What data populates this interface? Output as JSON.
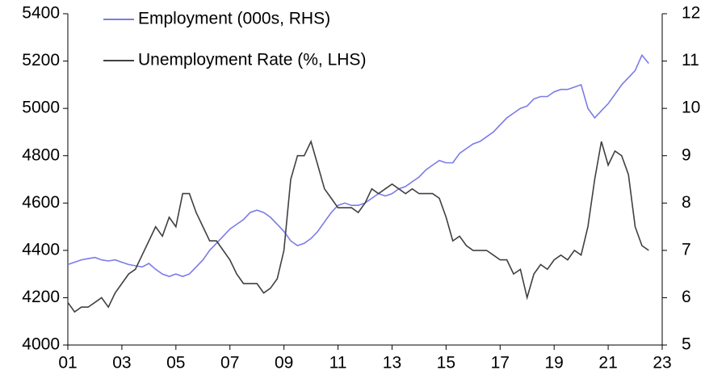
{
  "chart_data": {
    "type": "line",
    "x": [
      2001,
      2001.25,
      2001.5,
      2001.75,
      2002,
      2002.25,
      2002.5,
      2002.75,
      2003,
      2003.25,
      2003.5,
      2003.75,
      2004,
      2004.25,
      2004.5,
      2004.75,
      2005,
      2005.25,
      2005.5,
      2005.75,
      2006,
      2006.25,
      2006.5,
      2006.75,
      2007,
      2007.25,
      2007.5,
      2007.75,
      2008,
      2008.25,
      2008.5,
      2008.75,
      2009,
      2009.25,
      2009.5,
      2009.75,
      2010,
      2010.25,
      2010.5,
      2010.75,
      2011,
      2011.25,
      2011.5,
      2011.75,
      2012,
      2012.25,
      2012.5,
      2012.75,
      2013,
      2013.25,
      2013.5,
      2013.75,
      2014,
      2014.25,
      2014.5,
      2014.75,
      2015,
      2015.25,
      2015.5,
      2015.75,
      2016,
      2016.25,
      2016.5,
      2016.75,
      2017,
      2017.25,
      2017.5,
      2017.75,
      2018,
      2018.25,
      2018.5,
      2018.75,
      2019,
      2019.25,
      2019.5,
      2019.75,
      2020,
      2020.25,
      2020.5,
      2020.75,
      2021,
      2021.25,
      2021.5,
      2021.75,
      2022,
      2022.25,
      2022.5
    ],
    "series": [
      {
        "name": "Employment (000s, RHS)",
        "color": "#7b7be8",
        "axis": "y",
        "values": [
          4340,
          4350,
          4360,
          4365,
          4370,
          4360,
          4355,
          4360,
          4350,
          4340,
          4335,
          4330,
          4345,
          4320,
          4300,
          4290,
          4300,
          4290,
          4300,
          4330,
          4360,
          4400,
          4430,
          4460,
          4490,
          4510,
          4530,
          4560,
          4570,
          4560,
          4540,
          4510,
          4480,
          4440,
          4420,
          4430,
          4450,
          4480,
          4520,
          4560,
          4590,
          4600,
          4590,
          4590,
          4600,
          4620,
          4640,
          4630,
          4640,
          4660,
          4670,
          4690,
          4710,
          4740,
          4760,
          4780,
          4770,
          4770,
          4810,
          4830,
          4850,
          4860,
          4880,
          4900,
          4930,
          4960,
          4980,
          5000,
          5010,
          5040,
          5050,
          5050,
          5070,
          5080,
          5080,
          5090,
          5100,
          5000,
          4960,
          4990,
          5020,
          5060,
          5100,
          5130,
          5160,
          5225,
          5190
        ]
      },
      {
        "name": "Unemployment Rate (%, LHS)",
        "color": "#404040",
        "axis": "y2",
        "values": [
          5.9,
          5.7,
          5.8,
          5.8,
          5.9,
          6.0,
          5.8,
          6.1,
          6.3,
          6.5,
          6.6,
          6.9,
          7.2,
          7.5,
          7.3,
          7.7,
          7.5,
          8.2,
          8.2,
          7.8,
          7.5,
          7.2,
          7.2,
          7.0,
          6.8,
          6.5,
          6.3,
          6.3,
          6.3,
          6.1,
          6.2,
          6.4,
          7.0,
          8.5,
          9.0,
          9.0,
          9.3,
          8.8,
          8.3,
          8.1,
          7.9,
          7.9,
          7.9,
          7.8,
          8.0,
          8.3,
          8.2,
          8.3,
          8.4,
          8.3,
          8.2,
          8.3,
          8.2,
          8.2,
          8.2,
          8.1,
          7.7,
          7.2,
          7.3,
          7.1,
          7.0,
          7.0,
          7.0,
          6.9,
          6.8,
          6.8,
          6.5,
          6.6,
          6.0,
          6.5,
          6.7,
          6.6,
          6.8,
          6.9,
          6.8,
          7.0,
          6.9,
          7.5,
          8.5,
          9.3,
          8.8,
          9.1,
          9.0,
          8.6,
          7.5,
          7.1,
          7.0
        ]
      }
    ],
    "xlim": [
      2001,
      2023
    ],
    "xticks": [
      {
        "value": 2001,
        "label": "01"
      },
      {
        "value": 2003,
        "label": "03"
      },
      {
        "value": 2005,
        "label": "05"
      },
      {
        "value": 2007,
        "label": "07"
      },
      {
        "value": 2009,
        "label": "09"
      },
      {
        "value": 2011,
        "label": "11"
      },
      {
        "value": 2013,
        "label": "13"
      },
      {
        "value": 2015,
        "label": "15"
      },
      {
        "value": 2017,
        "label": "17"
      },
      {
        "value": 2019,
        "label": "19"
      },
      {
        "value": 2021,
        "label": "21"
      },
      {
        "value": 2023,
        "label": "23"
      }
    ],
    "ylim": [
      4000,
      5400
    ],
    "yticks": [
      4000,
      4200,
      4400,
      4600,
      4800,
      5000,
      5200,
      5400
    ],
    "y2lim": [
      5,
      12
    ],
    "y2ticks": [
      5,
      6,
      7,
      8,
      9,
      10,
      11,
      12
    ],
    "legend": "top-left"
  }
}
